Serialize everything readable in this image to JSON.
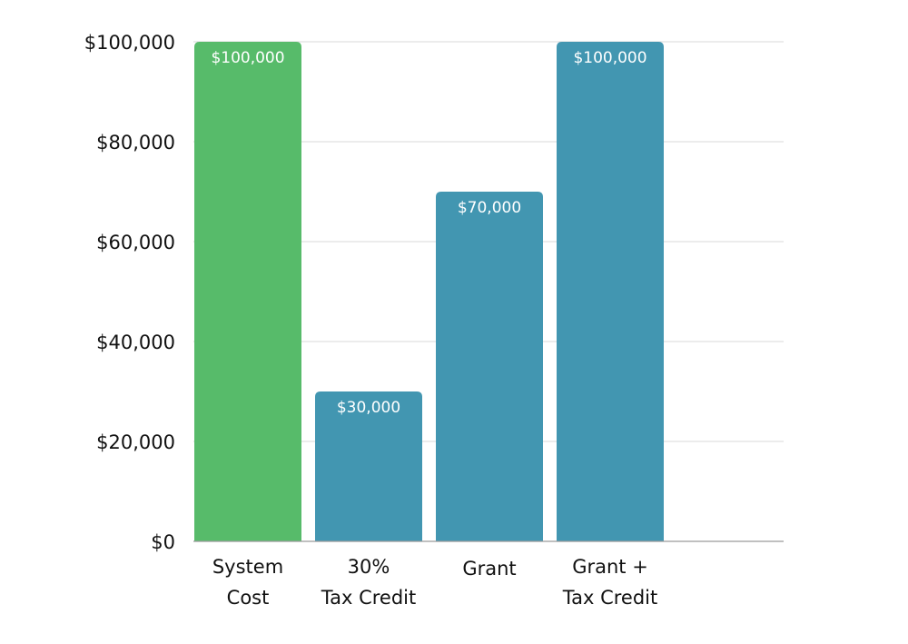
{
  "chart_data": {
    "type": "bar",
    "title": "",
    "xlabel": "",
    "ylabel": "",
    "categories": [
      [
        "System",
        "Cost"
      ],
      [
        "30%",
        "Tax Credit"
      ],
      [
        "Grant"
      ],
      [
        "Grant +",
        "Tax Credit"
      ]
    ],
    "values": [
      100000,
      30000,
      70000,
      100000
    ],
    "data_labels": [
      "$100,000",
      "$30,000",
      "$70,000",
      "$100,000"
    ],
    "bar_colors": [
      "#57bb6a",
      "#4296b1",
      "#4296b1",
      "#4296b1"
    ],
    "ylim": [
      0,
      100000
    ],
    "y_ticks": [
      0,
      20000,
      40000,
      60000,
      80000,
      100000
    ],
    "y_tick_labels": [
      "$0",
      "$20,000",
      "$40,000",
      "$60,000",
      "$80,000",
      "$100,000"
    ],
    "grid": true,
    "legend": "none"
  }
}
